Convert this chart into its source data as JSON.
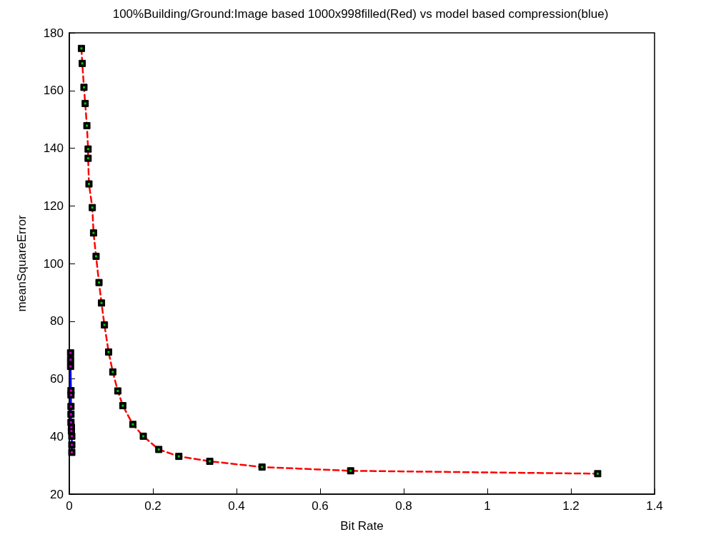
{
  "chart_data": {
    "type": "line",
    "title": "100%Building/Ground:Image based 1000x998filled(Red) vs model based compression(blue)",
    "xlabel": "Bit Rate",
    "ylabel": "meanSquareError",
    "xlim": [
      0,
      1.4
    ],
    "xticks": [
      0,
      0.2,
      0.4,
      0.6,
      0.8,
      1,
      1.2,
      1.4
    ],
    "ylim": [
      20,
      180
    ],
    "yticks": [
      20,
      40,
      60,
      80,
      100,
      120,
      140,
      160,
      180
    ],
    "grid": false,
    "marker": "square",
    "series": [
      {
        "color": "#ff0000",
        "line_style": "dashed",
        "x": [
          0.029,
          0.031,
          0.035,
          0.038,
          0.042,
          0.045,
          0.045,
          0.047,
          0.055,
          0.058,
          0.064,
          0.071,
          0.077,
          0.084,
          0.094,
          0.104,
          0.116,
          0.128,
          0.152,
          0.177,
          0.214,
          0.262,
          0.336,
          0.461,
          0.673,
          1.264
        ],
        "values": [
          174.6,
          169.4,
          161.1,
          155.5,
          147.8,
          139.7,
          136.5,
          127.6,
          119.4,
          110.6,
          102.5,
          93.4,
          86.3,
          78.7,
          69.3,
          62.4,
          55.8,
          50.7,
          44.2,
          40.1,
          35.5,
          33.1,
          31.4,
          29.4,
          28.1,
          27.1
        ]
      },
      {
        "color": "#0000ff",
        "line_style": "solid",
        "x": [
          0.003,
          0.003,
          0.003,
          0.004,
          0.004,
          0.004,
          0.004,
          0.004,
          0.005,
          0.005,
          0.006,
          0.006,
          0.006
        ],
        "values": [
          69.0,
          66.6,
          64.3,
          55.9,
          54.4,
          50.4,
          47.7,
          44.9,
          43.2,
          41.9,
          40.1,
          37.1,
          34.5
        ]
      }
    ]
  }
}
